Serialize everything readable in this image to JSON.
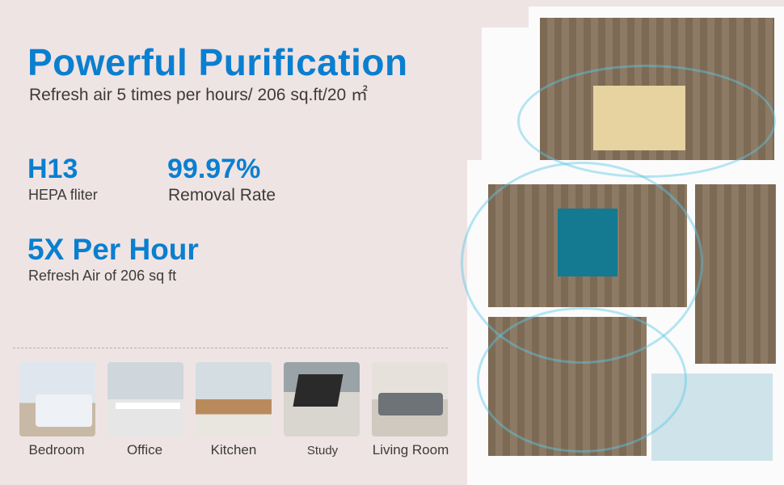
{
  "header": {
    "title": "Powerful Purification",
    "subtitle": "Refresh air 5 times per hours/ 206 sq.ft/20 ㎡"
  },
  "stats": [
    {
      "value": "H13",
      "label": "HEPA fliter"
    },
    {
      "value": "99.97%",
      "label": "Removal Rate"
    },
    {
      "value": "5X Per Hour",
      "label": "Refresh Air of 206 sq ft"
    }
  ],
  "rooms": [
    "Bedroom",
    "Office",
    "Kitchen",
    "Study",
    "Living Room"
  ],
  "colors": {
    "accent": "#0a7fd0",
    "background": "#efe4e4",
    "text": "#3e3a3a"
  }
}
